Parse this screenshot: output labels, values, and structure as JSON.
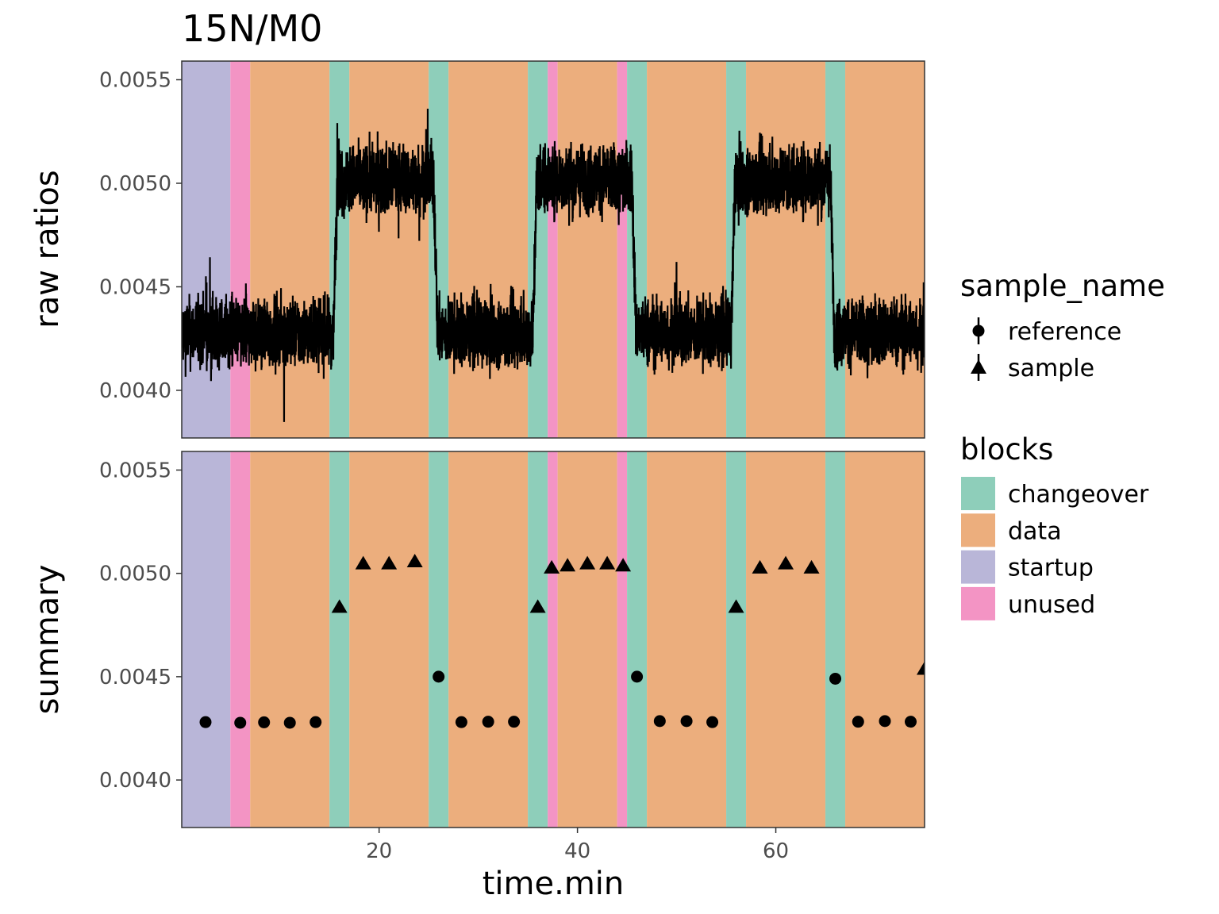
{
  "chart_data": {
    "type": "line",
    "title": "15N/M0",
    "xlabel": "time.min",
    "xlim": [
      0.1,
      75
    ],
    "x_ticks": [
      20,
      40,
      60
    ],
    "ylim": [
      0.00377,
      0.00559
    ],
    "y_ticks": [
      "0.0040",
      "0.0045",
      "0.0050",
      "0.0055"
    ],
    "grid": false,
    "legend_position": "right",
    "colors": {
      "changeover": "#8ECEBA",
      "data": "#ECAE7D",
      "startup": "#B9B6D8",
      "unused": "#F394C4",
      "trace": "#000000"
    },
    "blocks": [
      {
        "type": "startup",
        "start": 0.1,
        "end": 5
      },
      {
        "type": "unused",
        "start": 5,
        "end": 7
      },
      {
        "type": "data",
        "start": 7,
        "end": 15
      },
      {
        "type": "changeover",
        "start": 15,
        "end": 17
      },
      {
        "type": "data",
        "start": 17,
        "end": 25
      },
      {
        "type": "changeover",
        "start": 25,
        "end": 27
      },
      {
        "type": "data",
        "start": 27,
        "end": 35
      },
      {
        "type": "changeover",
        "start": 35,
        "end": 37
      },
      {
        "type": "unused",
        "start": 37,
        "end": 38
      },
      {
        "type": "data",
        "start": 38,
        "end": 44
      },
      {
        "type": "unused",
        "start": 44,
        "end": 45
      },
      {
        "type": "changeover",
        "start": 45,
        "end": 47
      },
      {
        "type": "data",
        "start": 47,
        "end": 55
      },
      {
        "type": "changeover",
        "start": 55,
        "end": 57
      },
      {
        "type": "data",
        "start": 57,
        "end": 65
      },
      {
        "type": "changeover",
        "start": 65,
        "end": 67
      },
      {
        "type": "data",
        "start": 67,
        "end": 75
      }
    ],
    "raw_ratio_segments": [
      {
        "sample_name": "reference",
        "start": 0.1,
        "end": 15.4,
        "mean": 0.00428,
        "noise": 9e-05
      },
      {
        "sample_name": "sample",
        "start": 15.4,
        "end": 25.5,
        "mean": 0.00502,
        "noise": 9e-05
      },
      {
        "sample_name": "reference",
        "start": 25.5,
        "end": 35.5,
        "mean": 0.00428,
        "noise": 9e-05
      },
      {
        "sample_name": "sample",
        "start": 35.5,
        "end": 45.5,
        "mean": 0.00502,
        "noise": 9e-05
      },
      {
        "sample_name": "reference",
        "start": 45.5,
        "end": 55.5,
        "mean": 0.00428,
        "noise": 9e-05
      },
      {
        "sample_name": "sample",
        "start": 55.5,
        "end": 65.5,
        "mean": 0.00502,
        "noise": 9e-05
      },
      {
        "sample_name": "reference",
        "start": 65.5,
        "end": 75,
        "mean": 0.00428,
        "noise": 9e-05
      }
    ],
    "series": [
      {
        "name": "reference",
        "x": [
          2.5,
          6.0,
          8.4,
          11.0,
          13.6,
          26.0,
          28.3,
          31.0,
          33.6,
          46.0,
          48.3,
          51.0,
          53.6,
          66.0,
          68.3,
          71.0,
          73.6
        ],
        "y": [
          0.00428,
          0.004277,
          0.004279,
          0.004277,
          0.00428,
          0.0045,
          0.00428,
          0.004282,
          0.004282,
          0.0045,
          0.004285,
          0.004285,
          0.00428,
          0.00449,
          0.004282,
          0.004285,
          0.004282
        ]
      },
      {
        "name": "sample",
        "x": [
          16.0,
          18.4,
          21.0,
          23.6,
          36.0,
          37.4,
          39.0,
          41.0,
          43.0,
          44.6,
          56.0,
          58.4,
          61.0,
          63.6,
          75.0
        ],
        "y": [
          0.00484,
          0.00505,
          0.00505,
          0.00506,
          0.00484,
          0.00503,
          0.00504,
          0.00505,
          0.00505,
          0.00504,
          0.00484,
          0.00503,
          0.00505,
          0.00503,
          0.00454
        ]
      }
    ],
    "panels": [
      {
        "ylabel": "raw ratios",
        "content": "raw"
      },
      {
        "ylabel": "summary",
        "content": "summary"
      }
    ],
    "legends": [
      {
        "title": "sample_name",
        "entries": [
          "reference",
          "sample"
        ]
      },
      {
        "title": "blocks",
        "entries": [
          "changeover",
          "data",
          "startup",
          "unused"
        ]
      }
    ]
  }
}
